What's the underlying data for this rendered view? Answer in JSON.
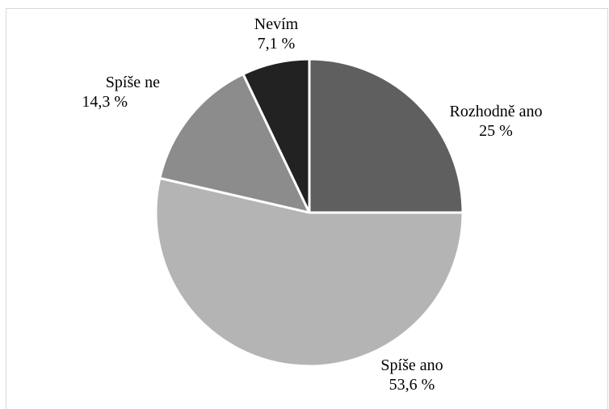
{
  "chart_data": {
    "type": "pie",
    "title": "",
    "slices": [
      {
        "label": "Rozhodně ano",
        "value": 25.0,
        "value_label": "25 %",
        "color": "#5f5f5f"
      },
      {
        "label": "Spíše ano",
        "value": 53.6,
        "value_label": "53,6 %",
        "color": "#b4b4b4"
      },
      {
        "label": "Spíše ne",
        "value": 14.3,
        "value_label": "14,3 %",
        "color": "#8c8c8c"
      },
      {
        "label": "Nevím",
        "value": 7.1,
        "value_label": "7,1 %",
        "color": "#222222"
      }
    ],
    "start_angle": "12 o'clock",
    "direction": "clockwise",
    "legend": "none"
  }
}
